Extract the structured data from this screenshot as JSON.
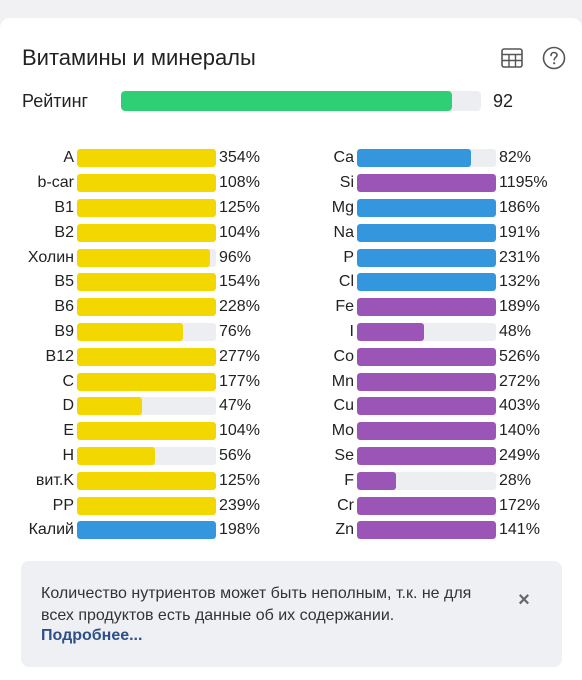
{
  "header": {
    "title": "Витамины и минералы",
    "icons": [
      "table-icon",
      "help-icon"
    ]
  },
  "rating": {
    "label": "Рейтинг",
    "value": "92",
    "fill_percent": 92,
    "color": "#2fcf76"
  },
  "colors": {
    "vitamin": "#f2d800",
    "mineral_blue": "#3496dc",
    "mineral_purple": "#9b55b7",
    "track": "#eceef1"
  },
  "vitamins": [
    {
      "label": "A",
      "pct": "354%",
      "fill": 100,
      "color": "#f2d800"
    },
    {
      "label": "b-car",
      "pct": "108%",
      "fill": 100,
      "color": "#f2d800"
    },
    {
      "label": "B1",
      "pct": "125%",
      "fill": 100,
      "color": "#f2d800"
    },
    {
      "label": "B2",
      "pct": "104%",
      "fill": 100,
      "color": "#f2d800"
    },
    {
      "label": "Холин",
      "pct": "96%",
      "fill": 96,
      "color": "#f2d800"
    },
    {
      "label": "B5",
      "pct": "154%",
      "fill": 100,
      "color": "#f2d800"
    },
    {
      "label": "B6",
      "pct": "228%",
      "fill": 100,
      "color": "#f2d800"
    },
    {
      "label": "B9",
      "pct": "76%",
      "fill": 76,
      "color": "#f2d800"
    },
    {
      "label": "B12",
      "pct": "277%",
      "fill": 100,
      "color": "#f2d800"
    },
    {
      "label": "C",
      "pct": "177%",
      "fill": 100,
      "color": "#f2d800"
    },
    {
      "label": "D",
      "pct": "47%",
      "fill": 47,
      "color": "#f2d800"
    },
    {
      "label": "E",
      "pct": "104%",
      "fill": 100,
      "color": "#f2d800"
    },
    {
      "label": "H",
      "pct": "56%",
      "fill": 56,
      "color": "#f2d800"
    },
    {
      "label": "вит.K",
      "pct": "125%",
      "fill": 100,
      "color": "#f2d800"
    },
    {
      "label": "PP",
      "pct": "239%",
      "fill": 100,
      "color": "#f2d800"
    },
    {
      "label": "Калий",
      "pct": "198%",
      "fill": 100,
      "color": "#3496dc"
    }
  ],
  "minerals": [
    {
      "label": "Ca",
      "pct": "82%",
      "fill": 82,
      "color": "#3496dc"
    },
    {
      "label": "Si",
      "pct": "1195%",
      "fill": 100,
      "color": "#9b55b7"
    },
    {
      "label": "Mg",
      "pct": "186%",
      "fill": 100,
      "color": "#3496dc"
    },
    {
      "label": "Na",
      "pct": "191%",
      "fill": 100,
      "color": "#3496dc"
    },
    {
      "label": "P",
      "pct": "231%",
      "fill": 100,
      "color": "#3496dc"
    },
    {
      "label": "Cl",
      "pct": "132%",
      "fill": 100,
      "color": "#3496dc"
    },
    {
      "label": "Fe",
      "pct": "189%",
      "fill": 100,
      "color": "#9b55b7"
    },
    {
      "label": "I",
      "pct": "48%",
      "fill": 48,
      "color": "#9b55b7"
    },
    {
      "label": "Co",
      "pct": "526%",
      "fill": 100,
      "color": "#9b55b7"
    },
    {
      "label": "Mn",
      "pct": "272%",
      "fill": 100,
      "color": "#9b55b7"
    },
    {
      "label": "Cu",
      "pct": "403%",
      "fill": 100,
      "color": "#9b55b7"
    },
    {
      "label": "Mo",
      "pct": "140%",
      "fill": 100,
      "color": "#9b55b7"
    },
    {
      "label": "Se",
      "pct": "249%",
      "fill": 100,
      "color": "#9b55b7"
    },
    {
      "label": "F",
      "pct": "28%",
      "fill": 28,
      "color": "#9b55b7"
    },
    {
      "label": "Cr",
      "pct": "172%",
      "fill": 100,
      "color": "#9b55b7"
    },
    {
      "label": "Zn",
      "pct": "141%",
      "fill": 100,
      "color": "#9b55b7"
    }
  ],
  "notice": {
    "text": "Количество нутриентов может быть неполным, т.к. не для всех продуктов есть данные об их содержании.",
    "link": "Подробнее...",
    "close": "×"
  }
}
